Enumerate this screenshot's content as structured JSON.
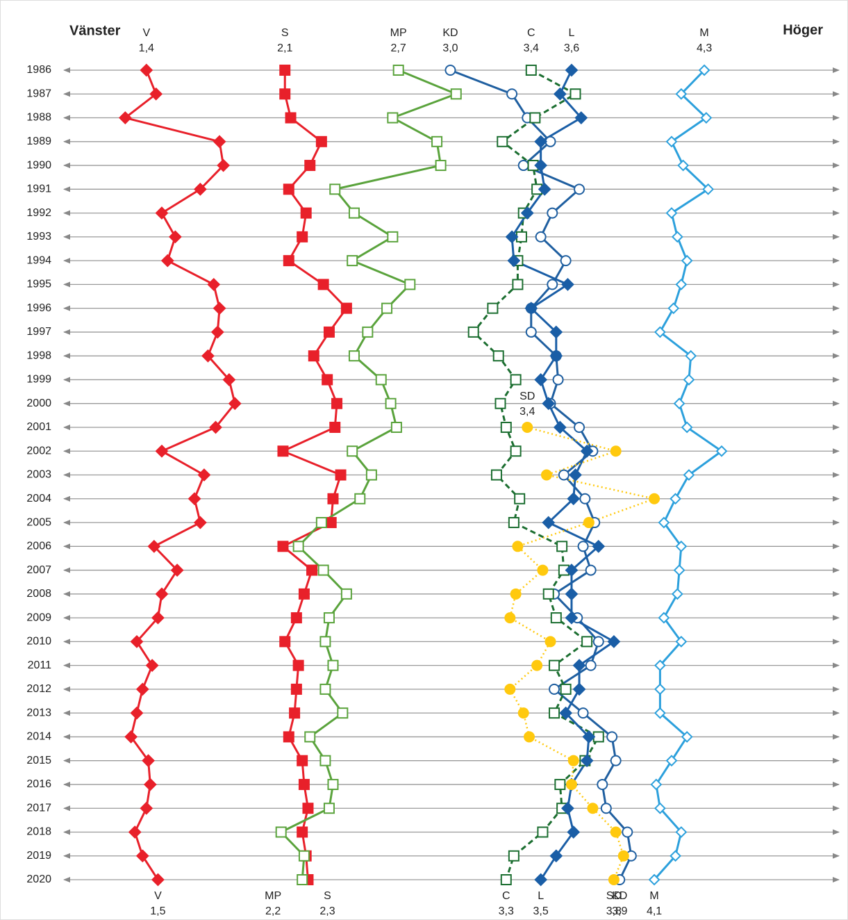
{
  "chart_data": {
    "type": "line",
    "annotations": [
      "Vänster",
      "Höger"
    ],
    "xlim": [
      1,
      5
    ],
    "categories": [
      "1986",
      "1987",
      "1988",
      "1989",
      "1990",
      "1991",
      "1992",
      "1993",
      "1994",
      "1995",
      "1996",
      "1997",
      "1998",
      "1999",
      "2000",
      "2001",
      "2002",
      "2003",
      "2004",
      "2005",
      "2006",
      "2007",
      "2008",
      "2009",
      "2010",
      "2011",
      "2012",
      "2013",
      "2014",
      "2015",
      "2016",
      "2017",
      "2018",
      "2019",
      "2020"
    ],
    "series": [
      {
        "name": "V",
        "color": "#e8202a",
        "marker": "diamond",
        "fill": true,
        "dash": "solid",
        "start_label": "1,4",
        "end_label": "1,5",
        "values": [
          1.4,
          1.45,
          1.29,
          1.78,
          1.8,
          1.68,
          1.48,
          1.55,
          1.51,
          1.75,
          1.78,
          1.77,
          1.72,
          1.83,
          1.86,
          1.76,
          1.48,
          1.7,
          1.65,
          1.68,
          1.44,
          1.56,
          1.48,
          1.46,
          1.35,
          1.43,
          1.38,
          1.35,
          1.32,
          1.41,
          1.42,
          1.4,
          1.34,
          1.38,
          1.46
        ]
      },
      {
        "name": "S",
        "color": "#e8202a",
        "marker": "square",
        "fill": true,
        "dash": "solid",
        "start_label": "2,1",
        "end_label": "2,3",
        "values": [
          2.12,
          2.12,
          2.15,
          2.31,
          2.25,
          2.14,
          2.23,
          2.21,
          2.14,
          2.32,
          2.44,
          2.35,
          2.27,
          2.34,
          2.39,
          2.38,
          2.11,
          2.41,
          2.37,
          2.36,
          2.11,
          2.26,
          2.22,
          2.18,
          2.12,
          2.19,
          2.18,
          2.17,
          2.14,
          2.21,
          2.22,
          2.24,
          2.21,
          2.23,
          2.24
        ]
      },
      {
        "name": "MP",
        "color": "#5aa33c",
        "marker": "square",
        "fill": false,
        "dash": "solid",
        "start_label": "2,7",
        "end_label": "2,2",
        "values": [
          2.71,
          3.01,
          2.68,
          2.91,
          2.93,
          2.38,
          2.48,
          2.68,
          2.47,
          2.77,
          2.65,
          2.55,
          2.48,
          2.62,
          2.67,
          2.7,
          2.47,
          2.57,
          2.51,
          2.31,
          2.19,
          2.32,
          2.44,
          2.35,
          2.33,
          2.37,
          2.33,
          2.42,
          2.25,
          2.33,
          2.37,
          2.35,
          2.1,
          2.22,
          2.21
        ]
      },
      {
        "name": "KD",
        "color": "#1f5fa0",
        "marker": "circle",
        "fill": false,
        "dash": "solid",
        "start_label": "3,0",
        "end_label": "3,9",
        "values": [
          2.98,
          3.3,
          3.38,
          3.5,
          3.36,
          3.65,
          3.51,
          3.45,
          3.58,
          3.51,
          3.4,
          3.4,
          3.53,
          3.54,
          3.5,
          3.65,
          3.72,
          3.57,
          3.68,
          3.73,
          3.67,
          3.71,
          3.52,
          3.64,
          3.75,
          3.71,
          3.52,
          3.67,
          3.82,
          3.84,
          3.77,
          3.79,
          3.9,
          3.92,
          3.86
        ]
      },
      {
        "name": "C",
        "color": "#1b6e30",
        "marker": "square",
        "fill": false,
        "dash": "dashed",
        "start_label": "3,4",
        "end_label": "3,3",
        "values": [
          3.4,
          3.63,
          3.42,
          3.25,
          3.41,
          3.43,
          3.36,
          3.35,
          3.33,
          3.33,
          3.2,
          3.1,
          3.23,
          3.32,
          3.24,
          3.27,
          3.32,
          3.22,
          3.34,
          3.31,
          3.56,
          3.57,
          3.49,
          3.53,
          3.69,
          3.52,
          3.58,
          3.52,
          3.75,
          3.68,
          3.55,
          3.56,
          3.46,
          3.31,
          3.27
        ]
      },
      {
        "name": "L",
        "color": "#1a5ea6",
        "marker": "diamond",
        "fill": true,
        "dash": "solid",
        "start_label": "3,6",
        "end_label": "3,5",
        "values": [
          3.61,
          3.55,
          3.66,
          3.45,
          3.45,
          3.47,
          3.38,
          3.3,
          3.31,
          3.59,
          3.4,
          3.53,
          3.53,
          3.45,
          3.49,
          3.55,
          3.69,
          3.63,
          3.62,
          3.49,
          3.75,
          3.61,
          3.61,
          3.61,
          3.83,
          3.65,
          3.65,
          3.58,
          3.7,
          3.69,
          3.61,
          3.59,
          3.62,
          3.53,
          3.45
        ]
      },
      {
        "name": "SD",
        "color": "#ffc90e",
        "marker": "circle",
        "fill": true,
        "dash": "dotted",
        "start_label": "3,4",
        "end_label": "3,8",
        "values": [
          null,
          null,
          null,
          null,
          null,
          null,
          null,
          null,
          null,
          null,
          null,
          null,
          null,
          null,
          null,
          3.38,
          3.84,
          3.48,
          4.04,
          3.7,
          3.33,
          3.46,
          3.32,
          3.29,
          3.5,
          3.43,
          3.29,
          3.36,
          3.39,
          3.62,
          3.61,
          3.72,
          3.84,
          3.88,
          3.83
        ]
      },
      {
        "name": "M",
        "color": "#2ca0dc",
        "marker": "diamond",
        "fill": false,
        "dash": "solid",
        "start_label": "4,3",
        "end_label": "4,1",
        "values": [
          4.3,
          4.18,
          4.31,
          4.13,
          4.19,
          4.32,
          4.13,
          4.16,
          4.21,
          4.18,
          4.14,
          4.07,
          4.23,
          4.22,
          4.17,
          4.21,
          4.39,
          4.22,
          4.15,
          4.09,
          4.18,
          4.17,
          4.16,
          4.09,
          4.18,
          4.07,
          4.07,
          4.07,
          4.21,
          4.13,
          4.05,
          4.07,
          4.18,
          4.15,
          4.04
        ]
      }
    ]
  }
}
